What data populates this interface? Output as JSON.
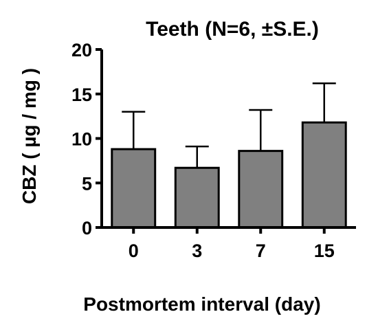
{
  "chart_data": {
    "type": "bar",
    "title": "Teeth (N=6, ±S.E.)",
    "xlabel": "Postmortem interval (day)",
    "ylabel": "CBZ ( µg / mg )",
    "categories": [
      "0",
      "3",
      "7",
      "15"
    ],
    "values": [
      8.8,
      6.7,
      8.6,
      11.8
    ],
    "errors": [
      4.2,
      2.4,
      4.6,
      4.4
    ],
    "error_direction": "upper",
    "ylim": [
      0,
      20
    ],
    "yticks": [
      0,
      5,
      10,
      15,
      20
    ],
    "grid": false,
    "bar_color": "#808080"
  }
}
